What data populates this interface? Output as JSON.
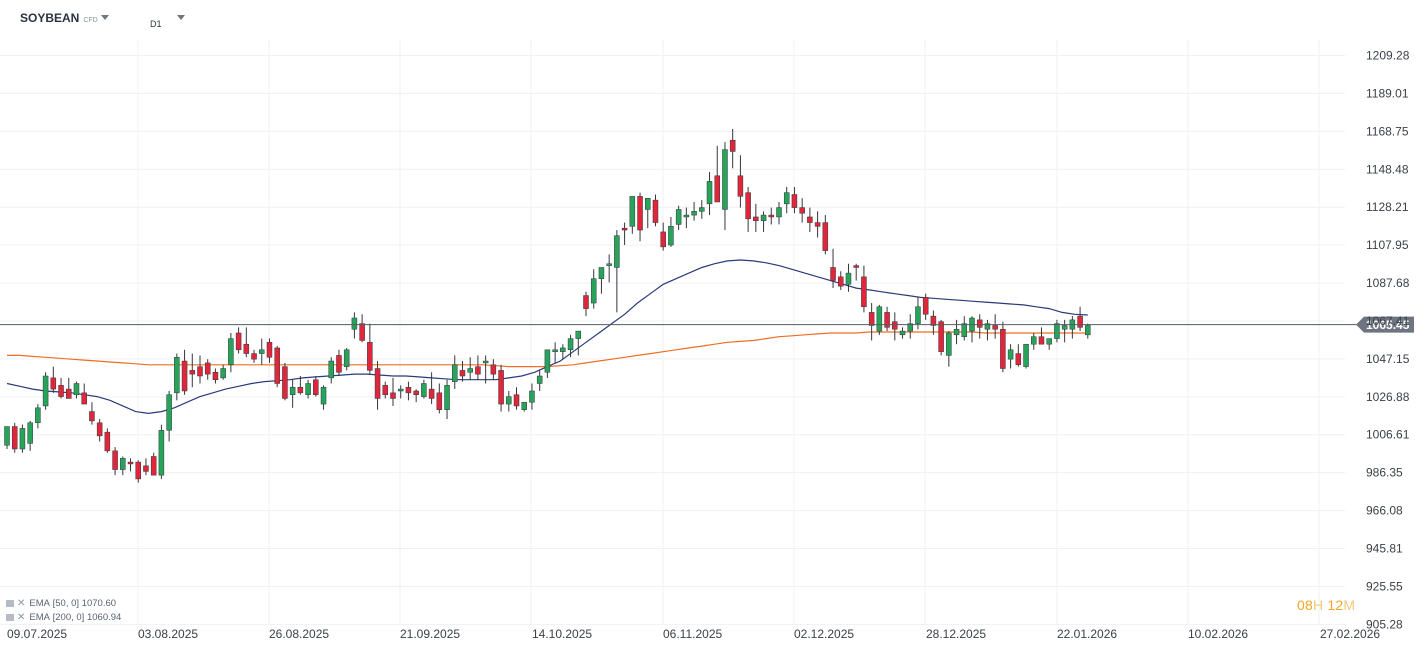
{
  "header": {
    "symbol": "SOYBEAN",
    "symbol_type": "CFD",
    "timeframe": "D1"
  },
  "legend": [
    {
      "name": "EMA",
      "params": "[50, 0]",
      "value": "1070.60",
      "color": "#2a3a7a"
    },
    {
      "name": "EMA",
      "params": "[200, 0]",
      "value": "1060.94",
      "color": "#ee6e23"
    }
  ],
  "countdown": {
    "hours": "08",
    "hours_unit": "H",
    "minutes": "12",
    "minutes_unit": "M"
  },
  "colors": {
    "up": "#27a35a",
    "down": "#e0263a",
    "ema50": "#2a3a7a",
    "ema200": "#ee6e23",
    "grid": "#eef0f3",
    "price_tag": "#6e7580",
    "price_line": "#555b63"
  },
  "chart_data": {
    "type": "candlestick",
    "symbol": "SOYBEAN",
    "timeframe": "D1",
    "y_ticks": [
      "1209.28",
      "1189.01",
      "1168.75",
      "1148.48",
      "1128.21",
      "1107.95",
      "1087.68",
      "1067.41",
      "1047.15",
      "1026.88",
      "1006.61",
      "986.35",
      "966.08",
      "945.81",
      "925.55",
      "905.28"
    ],
    "y_tick_values": [
      1209.28,
      1189.01,
      1168.75,
      1148.48,
      1128.21,
      1107.95,
      1087.68,
      1067.41,
      1047.15,
      1026.88,
      1006.61,
      986.35,
      966.08,
      945.81,
      925.55,
      905.28
    ],
    "x_labels": [
      "09.07.2025",
      "03.08.2025",
      "26.08.2025",
      "21.09.2025",
      "14.10.2025",
      "06.11.2025",
      "02.12.2025",
      "28.12.2025",
      "22.01.2026",
      "10.02.2026",
      "27.02.2026"
    ],
    "current_price": "1065.45",
    "candles": [
      [
        1001,
        1011,
        999,
        1011
      ],
      [
        1011,
        1013,
        997,
        999
      ],
      [
        999,
        1012,
        997,
        1010
      ],
      [
        1002,
        1014,
        998,
        1013
      ],
      [
        1013,
        1023,
        1010,
        1021
      ],
      [
        1022,
        1040,
        1020,
        1038
      ],
      [
        1037,
        1043,
        1029,
        1031
      ],
      [
        1033,
        1037,
        1026,
        1027
      ],
      [
        1031,
        1037,
        1026,
        1026
      ],
      [
        1028,
        1035,
        1026,
        1034
      ],
      [
        1029,
        1034,
        1023,
        1023
      ],
      [
        1019,
        1024,
        1012,
        1014
      ],
      [
        1013,
        1015,
        1003,
        1006
      ],
      [
        1008,
        1010,
        997,
        998
      ],
      [
        998,
        1000,
        985,
        988
      ],
      [
        988,
        995,
        985,
        994
      ],
      [
        992,
        994,
        987,
        991
      ],
      [
        992,
        993,
        981,
        983
      ],
      [
        990,
        994,
        985,
        987
      ],
      [
        995,
        997,
        985,
        985
      ],
      [
        985,
        1012,
        983,
        1009
      ],
      [
        1009,
        1030,
        1003,
        1028
      ],
      [
        1029,
        1050,
        1025,
        1048
      ],
      [
        1046,
        1052,
        1028,
        1030
      ],
      [
        1041,
        1050,
        1032,
        1039
      ],
      [
        1043,
        1049,
        1034,
        1038
      ],
      [
        1045,
        1047,
        1036,
        1039
      ],
      [
        1040,
        1042,
        1034,
        1036
      ],
      [
        1037,
        1044,
        1036,
        1042
      ],
      [
        1044,
        1061,
        1040,
        1058
      ],
      [
        1061,
        1064,
        1050,
        1052
      ],
      [
        1055,
        1064,
        1048,
        1050
      ],
      [
        1050,
        1052,
        1045,
        1047
      ],
      [
        1050,
        1058,
        1044,
        1052
      ],
      [
        1056,
        1058,
        1045,
        1048
      ],
      [
        1053,
        1054,
        1032,
        1034
      ],
      [
        1043,
        1045,
        1025,
        1026
      ],
      [
        1028,
        1036,
        1021,
        1032
      ],
      [
        1032,
        1038,
        1028,
        1029
      ],
      [
        1028,
        1036,
        1026,
        1034
      ],
      [
        1036,
        1038,
        1027,
        1028
      ],
      [
        1023,
        1033,
        1020,
        1032
      ],
      [
        1037,
        1048,
        1034,
        1046
      ],
      [
        1049,
        1052,
        1038,
        1040
      ],
      [
        1043,
        1053,
        1041,
        1052
      ],
      [
        1063,
        1072,
        1058,
        1069
      ],
      [
        1066,
        1071,
        1056,
        1057
      ],
      [
        1056,
        1066,
        1039,
        1041
      ],
      [
        1042,
        1046,
        1020,
        1026
      ],
      [
        1033,
        1035,
        1026,
        1028
      ],
      [
        1029,
        1037,
        1022,
        1026
      ],
      [
        1030,
        1033,
        1026,
        1031
      ],
      [
        1032,
        1035,
        1025,
        1029
      ],
      [
        1030,
        1031,
        1024,
        1028
      ],
      [
        1027,
        1036,
        1026,
        1034
      ],
      [
        1031,
        1040,
        1023,
        1026
      ],
      [
        1029,
        1034,
        1018,
        1020
      ],
      [
        1020,
        1036,
        1015,
        1033
      ],
      [
        1035,
        1049,
        1031,
        1044
      ],
      [
        1041,
        1046,
        1035,
        1038
      ],
      [
        1040,
        1048,
        1036,
        1042
      ],
      [
        1043,
        1049,
        1036,
        1039
      ],
      [
        1045,
        1049,
        1034,
        1046
      ],
      [
        1044,
        1047,
        1036,
        1039
      ],
      [
        1041,
        1044,
        1019,
        1023
      ],
      [
        1023,
        1030,
        1019,
        1027
      ],
      [
        1028,
        1032,
        1020,
        1022
      ],
      [
        1020,
        1024,
        1019,
        1024
      ],
      [
        1024,
        1034,
        1020,
        1030
      ],
      [
        1034,
        1041,
        1030,
        1038
      ],
      [
        1040,
        1051,
        1037,
        1052
      ],
      [
        1051,
        1056,
        1045,
        1052
      ],
      [
        1051,
        1055,
        1047,
        1053
      ],
      [
        1052,
        1060,
        1048,
        1058
      ],
      [
        1058,
        1062,
        1049,
        1062
      ],
      [
        1081,
        1083,
        1070,
        1074
      ],
      [
        1077,
        1095,
        1074,
        1090
      ],
      [
        1090,
        1096,
        1082,
        1096
      ],
      [
        1097,
        1103,
        1088,
        1098
      ],
      [
        1096,
        1116,
        1072,
        1113
      ],
      [
        1117,
        1120,
        1108,
        1116
      ],
      [
        1118,
        1133,
        1114,
        1134
      ],
      [
        1134,
        1136,
        1110,
        1116
      ],
      [
        1127,
        1133,
        1117,
        1133
      ],
      [
        1132,
        1135,
        1118,
        1120
      ],
      [
        1115,
        1120,
        1105,
        1107
      ],
      [
        1108,
        1123,
        1107,
        1118
      ],
      [
        1119,
        1129,
        1116,
        1127
      ],
      [
        1123,
        1128,
        1117,
        1124
      ],
      [
        1124,
        1131,
        1121,
        1126
      ],
      [
        1126,
        1132,
        1122,
        1128
      ],
      [
        1130,
        1147,
        1124,
        1142
      ],
      [
        1145,
        1161,
        1131,
        1131
      ],
      [
        1127,
        1163,
        1116,
        1159
      ],
      [
        1164,
        1170,
        1149,
        1158
      ],
      [
        1145,
        1156,
        1128,
        1134
      ],
      [
        1136,
        1139,
        1115,
        1122
      ],
      [
        1123,
        1130,
        1115,
        1121
      ],
      [
        1121,
        1126,
        1115,
        1124
      ],
      [
        1124,
        1128,
        1119,
        1123
      ],
      [
        1123,
        1131,
        1119,
        1128
      ],
      [
        1130,
        1139,
        1125,
        1136
      ],
      [
        1135,
        1139,
        1125,
        1128
      ],
      [
        1128,
        1133,
        1120,
        1125
      ],
      [
        1123,
        1128,
        1115,
        1120
      ],
      [
        1120,
        1126,
        1112,
        1118
      ],
      [
        1120,
        1124,
        1103,
        1105
      ],
      [
        1096,
        1106,
        1085,
        1089
      ],
      [
        1091,
        1094,
        1084,
        1086
      ],
      [
        1087,
        1098,
        1083,
        1093
      ],
      [
        1097,
        1098,
        1089,
        1096
      ],
      [
        1091,
        1097,
        1072,
        1075
      ],
      [
        1072,
        1077,
        1057,
        1065
      ],
      [
        1062,
        1076,
        1060,
        1075
      ],
      [
        1072,
        1075,
        1062,
        1064
      ],
      [
        1067,
        1072,
        1057,
        1063
      ],
      [
        1060,
        1064,
        1058,
        1062
      ],
      [
        1062,
        1071,
        1058,
        1066
      ],
      [
        1066,
        1080,
        1063,
        1075
      ],
      [
        1080,
        1082,
        1068,
        1071
      ],
      [
        1070,
        1073,
        1060,
        1065
      ],
      [
        1067,
        1068,
        1049,
        1051
      ],
      [
        1049,
        1062,
        1043,
        1061
      ],
      [
        1060,
        1068,
        1055,
        1063
      ],
      [
        1059,
        1070,
        1057,
        1066
      ],
      [
        1062,
        1070,
        1056,
        1069
      ],
      [
        1068,
        1071,
        1058,
        1064
      ],
      [
        1063,
        1068,
        1057,
        1066
      ],
      [
        1065,
        1071,
        1058,
        1063
      ],
      [
        1063,
        1067,
        1040,
        1042
      ],
      [
        1047,
        1055,
        1042,
        1052
      ],
      [
        1050,
        1055,
        1043,
        1044
      ],
      [
        1043,
        1054,
        1042,
        1055
      ],
      [
        1055,
        1061,
        1052,
        1059
      ],
      [
        1059,
        1064,
        1055,
        1055
      ],
      [
        1055,
        1058,
        1052,
        1058
      ],
      [
        1058,
        1068,
        1056,
        1066
      ],
      [
        1063,
        1068,
        1056,
        1065
      ],
      [
        1063,
        1070,
        1058,
        1068
      ],
      [
        1070,
        1075,
        1062,
        1064
      ],
      [
        1060,
        1066,
        1058,
        1065
      ]
    ],
    "ema50": [
      1034,
      1032.5,
      1031,
      1030,
      1029.5,
      1029,
      1028,
      1027,
      1025,
      1022,
      1019,
      1018,
      1019,
      1021,
      1024,
      1027,
      1029,
      1031,
      1032.5,
      1034,
      1035,
      1035.5,
      1036,
      1037,
      1037.5,
      1038,
      1038.5,
      1039,
      1039,
      1038.5,
      1038,
      1038,
      1037.5,
      1037,
      1036.5,
      1036,
      1036,
      1036,
      1036,
      1037,
      1038,
      1040,
      1043,
      1046,
      1051,
      1056,
      1061,
      1066,
      1071,
      1077,
      1082,
      1087,
      1090,
      1093,
      1096,
      1098,
      1099.5,
      1100,
      1099.5,
      1098.5,
      1097,
      1095,
      1093,
      1091,
      1089,
      1087,
      1085,
      1084,
      1083,
      1082,
      1081,
      1080,
      1079.5,
      1079,
      1078.5,
      1078,
      1077.5,
      1077,
      1076.5,
      1076,
      1075,
      1074,
      1072,
      1071,
      1070.6
    ],
    "ema200": [
      1049,
      1049,
      1048.5,
      1048,
      1047.5,
      1047,
      1046.5,
      1046,
      1045.5,
      1045,
      1044.5,
      1044,
      1044,
      1044,
      1044,
      1044,
      1044,
      1044,
      1044,
      1044,
      1044,
      1044,
      1044,
      1044,
      1044,
      1044,
      1044,
      1044,
      1044,
      1044,
      1044,
      1044,
      1044,
      1044,
      1044,
      1044,
      1044,
      1044,
      1043.5,
      1043,
      1043,
      1043,
      1043,
      1043.5,
      1044,
      1045,
      1046,
      1047,
      1048,
      1049,
      1050,
      1051,
      1052,
      1053,
      1054,
      1055,
      1056,
      1056.5,
      1057,
      1058,
      1059,
      1059.5,
      1060,
      1060.5,
      1061,
      1061,
      1061,
      1061.5,
      1061.5,
      1061.5,
      1061.5,
      1061.5,
      1061.5,
      1061.5,
      1061.5,
      1061.5,
      1061,
      1061,
      1061,
      1061,
      1061,
      1061,
      1061,
      1061,
      1060.94
    ]
  }
}
